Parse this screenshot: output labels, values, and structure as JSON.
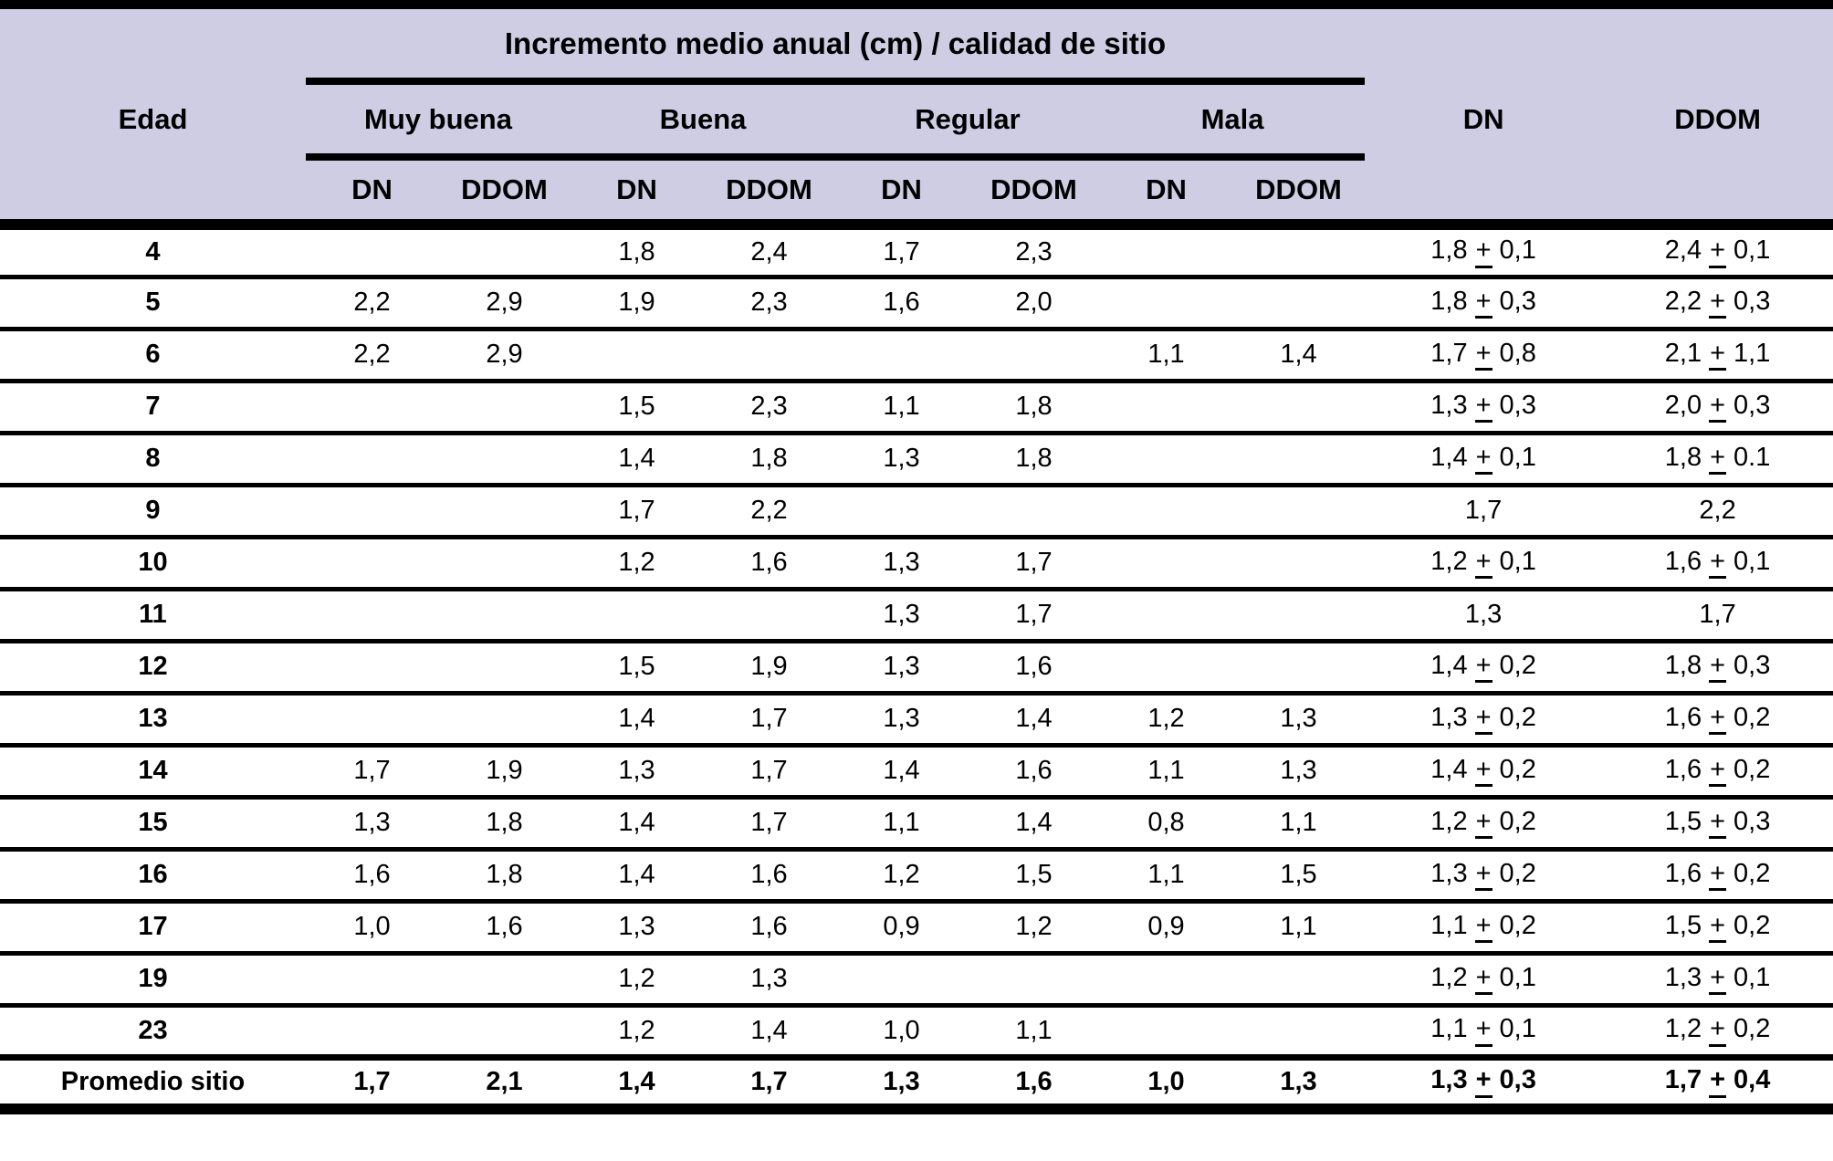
{
  "colors": {
    "header_bg": "#CFCDE3",
    "border": "#000000",
    "text": "#000000",
    "background": "#FFFFFF"
  },
  "table": {
    "title": "Incremento medio anual (cm) / calidad de sitio",
    "edad_label": "Edad",
    "groups": [
      {
        "label": "Muy buena"
      },
      {
        "label": "Buena"
      },
      {
        "label": "Regular"
      },
      {
        "label": "Mala"
      }
    ],
    "subheaders": [
      "DN",
      "DDOM",
      "DN",
      "DDOM",
      "DN",
      "DDOM",
      "DN",
      "DDOM"
    ],
    "dn_label": "DN",
    "ddom_label": "DDOM",
    "rows": [
      {
        "edad": "4",
        "values": [
          "",
          "",
          "1,8",
          "2,4",
          "1,7",
          "2,3",
          "",
          ""
        ],
        "dn": "1,8 ± 0,1",
        "ddom": "2,4 ± 0,1"
      },
      {
        "edad": "5",
        "values": [
          "2,2",
          "2,9",
          "1,9",
          "2,3",
          "1,6",
          "2,0",
          "",
          ""
        ],
        "dn": "1,8 ± 0,3",
        "ddom": "2,2 ± 0,3"
      },
      {
        "edad": "6",
        "values": [
          "2,2",
          "2,9",
          "",
          "",
          "",
          "",
          "1,1",
          "1,4"
        ],
        "dn": "1,7 ± 0,8",
        "ddom": "2,1 ± 1,1"
      },
      {
        "edad": "7",
        "values": [
          "",
          "",
          "1,5",
          "2,3",
          "1,1",
          "1,8",
          "",
          ""
        ],
        "dn": "1,3 ± 0,3",
        "ddom": "2,0 ± 0,3"
      },
      {
        "edad": "8",
        "values": [
          "",
          "",
          "1,4",
          "1,8",
          "1,3",
          "1,8",
          "",
          ""
        ],
        "dn": "1,4 ± 0,1",
        "ddom": "1,8 ± 0.1"
      },
      {
        "edad": "9",
        "values": [
          "",
          "",
          "1,7",
          "2,2",
          "",
          "",
          "",
          ""
        ],
        "dn": "1,7",
        "ddom": "2,2"
      },
      {
        "edad": "10",
        "values": [
          "",
          "",
          "1,2",
          "1,6",
          "1,3",
          "1,7",
          "",
          ""
        ],
        "dn": "1,2 ± 0,1",
        "ddom": "1,6 ± 0,1"
      },
      {
        "edad": "11",
        "values": [
          "",
          "",
          "",
          "",
          "1,3",
          "1,7",
          "",
          ""
        ],
        "dn": "1,3",
        "ddom": "1,7"
      },
      {
        "edad": "12",
        "values": [
          "",
          "",
          "1,5",
          "1,9",
          "1,3",
          "1,6",
          "",
          ""
        ],
        "dn": "1,4 ± 0,2",
        "ddom": "1,8 ± 0,3"
      },
      {
        "edad": "13",
        "values": [
          "",
          "",
          "1,4",
          "1,7",
          "1,3",
          "1,4",
          "1,2",
          "1,3"
        ],
        "dn": "1,3 ± 0,2",
        "ddom": "1,6 ± 0,2"
      },
      {
        "edad": "14",
        "values": [
          "1,7",
          "1,9",
          "1,3",
          "1,7",
          "1,4",
          "1,6",
          "1,1",
          "1,3"
        ],
        "dn": "1,4 ± 0,2",
        "ddom": "1,6 ± 0,2"
      },
      {
        "edad": "15",
        "values": [
          "1,3",
          "1,8",
          "1,4",
          "1,7",
          "1,1",
          "1,4",
          "0,8",
          "1,1"
        ],
        "dn": "1,2 ± 0,2",
        "ddom": "1,5 ± 0,3"
      },
      {
        "edad": "16",
        "values": [
          "1,6",
          "1,8",
          "1,4",
          "1,6",
          "1,2",
          "1,5",
          "1,1",
          "1,5"
        ],
        "dn": "1,3 ± 0,2",
        "ddom": "1,6 ± 0,2"
      },
      {
        "edad": "17",
        "values": [
          "1,0",
          "1,6",
          "1,3",
          "1,6",
          "0,9",
          "1,2",
          "0,9",
          "1,1"
        ],
        "dn": "1,1 ± 0,2",
        "ddom": "1,5 ± 0,2"
      },
      {
        "edad": "19",
        "values": [
          "",
          "",
          "1,2",
          "1,3",
          "",
          "",
          "",
          ""
        ],
        "dn": "1,2 ± 0,1",
        "ddom": "1,3 ± 0,1"
      },
      {
        "edad": "23",
        "values": [
          "",
          "",
          "1,2",
          "1,4",
          "1,0",
          "1,1",
          "",
          ""
        ],
        "dn": "1,1 ± 0,1",
        "ddom": "1,2 ± 0,2"
      },
      {
        "edad": "Promedio sitio",
        "values": [
          "1,7",
          "2,1",
          "1,4",
          "1,7",
          "1,3",
          "1,6",
          "1,0",
          "1,3"
        ],
        "dn": "1,3 ± 0,3",
        "ddom": "1,7 ± 0,4",
        "bold": true
      }
    ]
  }
}
